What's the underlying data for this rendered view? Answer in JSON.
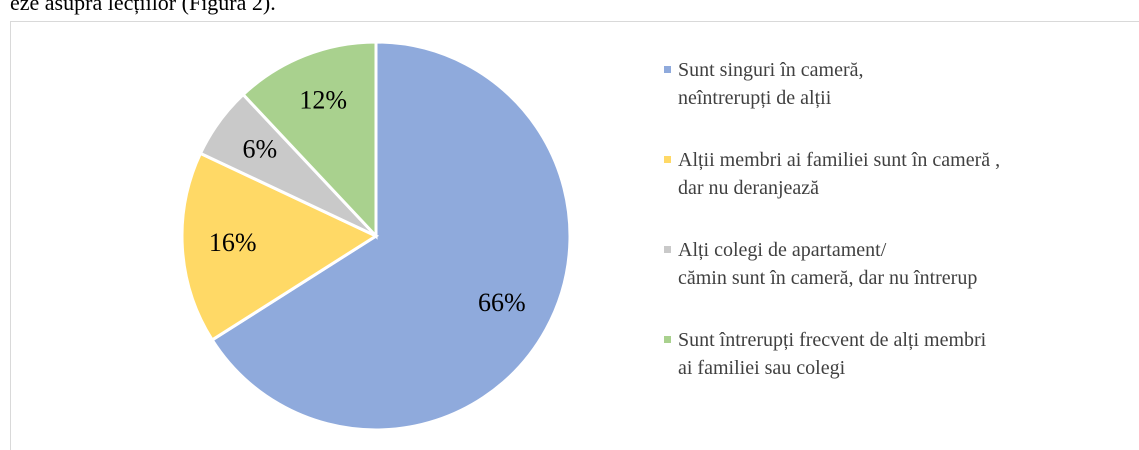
{
  "text_above": "eze asupra lecțiilor (Figura 2).",
  "chart_data": {
    "type": "pie",
    "categories": [
      "Sunt singuri în cameră,\nneîntrerupți de alții",
      "Alții membri ai familiei sunt în cameră ,\ndar nu deranjează",
      "Alți colegi de apartament/\ncămin sunt în cameră, dar nu întrerup",
      "Sunt întrerupți frecvent de alți membri\nai familiei sau colegi"
    ],
    "values": [
      66,
      16,
      6,
      12
    ],
    "value_labels": [
      "66%",
      "16%",
      "6%",
      "12%"
    ],
    "colors": [
      "#8faadc",
      "#ffd966",
      "#c9c9c9",
      "#a9d18e"
    ],
    "legend": "right"
  }
}
